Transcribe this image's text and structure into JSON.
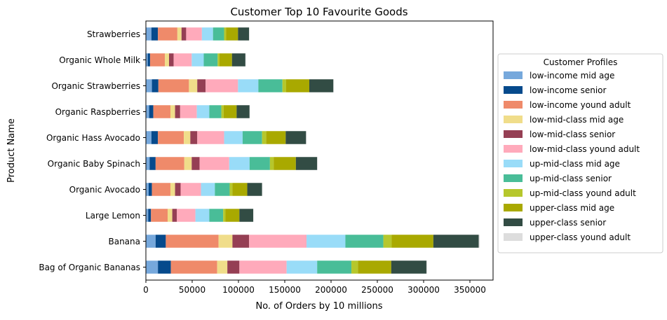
{
  "chart_data": {
    "type": "bar",
    "orientation": "horizontal",
    "stacked": true,
    "title": "Customer Top 10 Favourite Goods",
    "xlabel": "No. of Orders by 10 millions",
    "ylabel": "Product Name",
    "xlim": [
      0,
      375000
    ],
    "xticks": [
      0,
      50000,
      100000,
      150000,
      200000,
      250000,
      300000,
      350000
    ],
    "grid": false,
    "legend_title": "Customer Profiles",
    "legend_placement": "right, outside plot",
    "categories": [
      "Bag of Organic Bananas",
      "Banana",
      "Large Lemon",
      "Organic Avocado",
      "Organic Baby Spinach",
      "Organic Hass Avocado",
      "Organic Raspberries",
      "Organic Strawberries",
      "Organic Whole Milk",
      "Strawberries"
    ],
    "series": [
      {
        "name": "low-income mid age",
        "color": "#76a8dc",
        "values": [
          13000,
          10500,
          2500,
          3000,
          4000,
          6000,
          3500,
          6500,
          2000,
          6000
        ]
      },
      {
        "name": "low-income senior",
        "color": "#064a8c",
        "values": [
          14000,
          11000,
          3000,
          3500,
          6500,
          7000,
          4500,
          7000,
          2500,
          7000
        ]
      },
      {
        "name": "low-income yound adult",
        "color": "#ef8a6a",
        "values": [
          50000,
          57000,
          18000,
          20000,
          31000,
          28000,
          18500,
          33000,
          16000,
          21000
        ]
      },
      {
        "name": "low-mid-class mid age",
        "color": "#f0dd8a",
        "values": [
          11000,
          15000,
          5000,
          5000,
          8000,
          7000,
          5000,
          9000,
          4500,
          4500
        ]
      },
      {
        "name": "low-mid-class senior",
        "color": "#953f54",
        "values": [
          13000,
          18000,
          5000,
          6000,
          8500,
          7500,
          5500,
          9000,
          5000,
          5000
        ]
      },
      {
        "name": "low-mid-class yound adult",
        "color": "#ffaabb",
        "values": [
          51000,
          62000,
          20000,
          22000,
          32000,
          29000,
          18000,
          35000,
          19500,
          17000
        ]
      },
      {
        "name": "up-mid-class mid age",
        "color": "#99dcf8",
        "values": [
          33000,
          42000,
          15000,
          15000,
          22000,
          20000,
          13500,
          22000,
          13000,
          12000
        ]
      },
      {
        "name": "up-mid-class senior",
        "color": "#49bd98",
        "values": [
          37000,
          41000,
          15000,
          16000,
          22000,
          21000,
          13000,
          26000,
          15000,
          12000
        ]
      },
      {
        "name": "up-mid-class yound adult",
        "color": "#b6c72c",
        "values": [
          7000,
          9000,
          2500,
          3000,
          4000,
          4500,
          2500,
          4000,
          2000,
          2000
        ]
      },
      {
        "name": "upper-class mid age",
        "color": "#a9a900",
        "values": [
          36000,
          45000,
          15000,
          16000,
          24000,
          21000,
          14000,
          25000,
          13500,
          13000
        ]
      },
      {
        "name": "upper-class senior",
        "color": "#324c44",
        "values": [
          38000,
          49000,
          15000,
          16000,
          23000,
          22000,
          14000,
          26000,
          14500,
          12000
        ]
      },
      {
        "name": "upper-class yound adult",
        "color": "#dddddd",
        "values": [
          800,
          1000,
          300,
          300,
          500,
          400,
          300,
          500,
          300,
          300
        ]
      }
    ]
  }
}
